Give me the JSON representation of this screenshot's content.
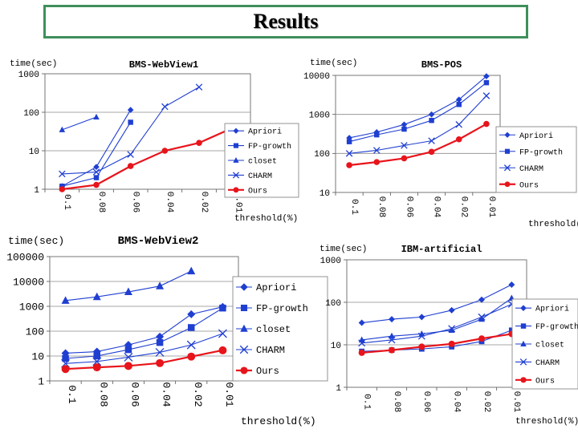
{
  "slide": {
    "title": "Results"
  },
  "chart_data": [
    {
      "type": "line",
      "title": "BMS-WebView1",
      "ylabel": "time(sec)",
      "xlabel": "threshold(%)",
      "yscale": "log",
      "ylim": [
        1,
        1000
      ],
      "yticks": [
        1,
        10,
        100,
        1000
      ],
      "ytick_labels": [
        "1",
        "10",
        "100",
        "1000"
      ],
      "grid": true,
      "legend": "right",
      "categories": [
        "0.1",
        "0.08",
        "0.06",
        "0.04",
        "0.02",
        "0.01"
      ],
      "series": [
        {
          "name": "Apriori",
          "marker": "diamond",
          "color": "#1f3fd1",
          "values": [
            1.2,
            3.8,
            115,
            null,
            null,
            null
          ]
        },
        {
          "name": "FP-growth",
          "marker": "square",
          "color": "#1f3fd1",
          "values": [
            1.2,
            2.0,
            55,
            null,
            null,
            null
          ]
        },
        {
          "name": "closet",
          "marker": "triangle",
          "color": "#1f3fd1",
          "values": [
            35,
            75,
            null,
            null,
            null,
            null
          ]
        },
        {
          "name": "CHARM",
          "marker": "x",
          "color": "#1f3fd1",
          "values": [
            2.5,
            2.8,
            8,
            140,
            450,
            null
          ]
        },
        {
          "name": "Ours",
          "marker": "circle",
          "color": "#e8141b",
          "values": [
            1.0,
            1.3,
            4.0,
            10,
            16,
            40
          ]
        }
      ]
    },
    {
      "type": "line",
      "title": "BMS-POS",
      "ylabel": "time(sec)",
      "xlabel": "threshold(%)",
      "yscale": "log",
      "ylim": [
        10,
        10000
      ],
      "yticks": [
        10,
        100,
        1000,
        10000
      ],
      "ytick_labels": [
        "10",
        "100",
        "1000",
        "10000"
      ],
      "grid": true,
      "legend": "right",
      "categories": [
        "0.1",
        "0.08",
        "0.06",
        "0.04",
        "0.02",
        "0.01"
      ],
      "series": [
        {
          "name": "Apriori",
          "marker": "diamond",
          "color": "#1f3fd1",
          "values": [
            250,
            350,
            550,
            1000,
            2400,
            9500
          ]
        },
        {
          "name": "FP-growth",
          "marker": "square",
          "color": "#1f3fd1",
          "values": [
            200,
            300,
            420,
            700,
            1800,
            6500
          ]
        },
        {
          "name": "CHARM",
          "marker": "x",
          "color": "#1f3fd1",
          "values": [
            100,
            120,
            160,
            210,
            550,
            3000
          ]
        },
        {
          "name": "Ours",
          "marker": "circle",
          "color": "#e8141b",
          "values": [
            50,
            60,
            75,
            110,
            230,
            570
          ]
        }
      ]
    },
    {
      "type": "line",
      "title": "BMS-WebView2",
      "ylabel": "time(sec)",
      "xlabel": "threshold(%)",
      "yscale": "log",
      "ylim": [
        1,
        100000
      ],
      "yticks": [
        1,
        10,
        100,
        1000,
        10000,
        100000
      ],
      "ytick_labels": [
        "1",
        "10",
        "100",
        "1000",
        "10000",
        "100000"
      ],
      "grid": true,
      "legend": "right",
      "categories": [
        "0.1",
        "0.08",
        "0.06",
        "0.04",
        "0.02",
        "0.01"
      ],
      "series": [
        {
          "name": "Apriori",
          "marker": "diamond",
          "color": "#1f3fd1",
          "values": [
            13,
            15,
            28,
            60,
            480,
            950
          ]
        },
        {
          "name": "FP-growth",
          "marker": "square",
          "color": "#1f3fd1",
          "values": [
            8,
            10,
            18,
            35,
            140,
            850
          ]
        },
        {
          "name": "closet",
          "marker": "triangle",
          "color": "#1f3fd1",
          "values": [
            1700,
            2400,
            3800,
            6500,
            26000,
            null
          ]
        },
        {
          "name": "CHARM",
          "marker": "x",
          "color": "#1f3fd1",
          "values": [
            5,
            6,
            9,
            14,
            28,
            80
          ]
        },
        {
          "name": "Ours",
          "marker": "circle",
          "color": "#e8141b",
          "values": [
            3,
            3.5,
            4,
            5.2,
            9.5,
            17
          ]
        }
      ]
    },
    {
      "type": "line",
      "title": "IBM-artificial",
      "ylabel": "time(sec)",
      "xlabel": "threshold(%)",
      "yscale": "log",
      "ylim": [
        1,
        1000
      ],
      "yticks": [
        1,
        10,
        100,
        1000
      ],
      "ytick_labels": [
        "1",
        "10",
        "100",
        "1000"
      ],
      "grid": true,
      "legend": "right",
      "categories": [
        "0.1",
        "0.08",
        "0.06",
        "0.04",
        "0.02",
        "0.01"
      ],
      "series": [
        {
          "name": "Apriori",
          "marker": "diamond",
          "color": "#1f3fd1",
          "values": [
            33,
            40,
            45,
            65,
            115,
            260
          ]
        },
        {
          "name": "FP-growth",
          "marker": "square",
          "color": "#1f3fd1",
          "values": [
            7,
            7.5,
            8,
            9,
            12,
            22
          ]
        },
        {
          "name": "closet",
          "marker": "triangle",
          "color": "#1f3fd1",
          "values": [
            13,
            16,
            18,
            22,
            40,
            125
          ]
        },
        {
          "name": "CHARM",
          "marker": "x",
          "color": "#1f3fd1",
          "values": [
            11,
            13,
            16,
            24,
            45,
            90
          ]
        },
        {
          "name": "Ours",
          "marker": "circle",
          "color": "#e8141b",
          "values": [
            6.5,
            7.5,
            9,
            10.5,
            14,
            18
          ]
        }
      ]
    }
  ]
}
